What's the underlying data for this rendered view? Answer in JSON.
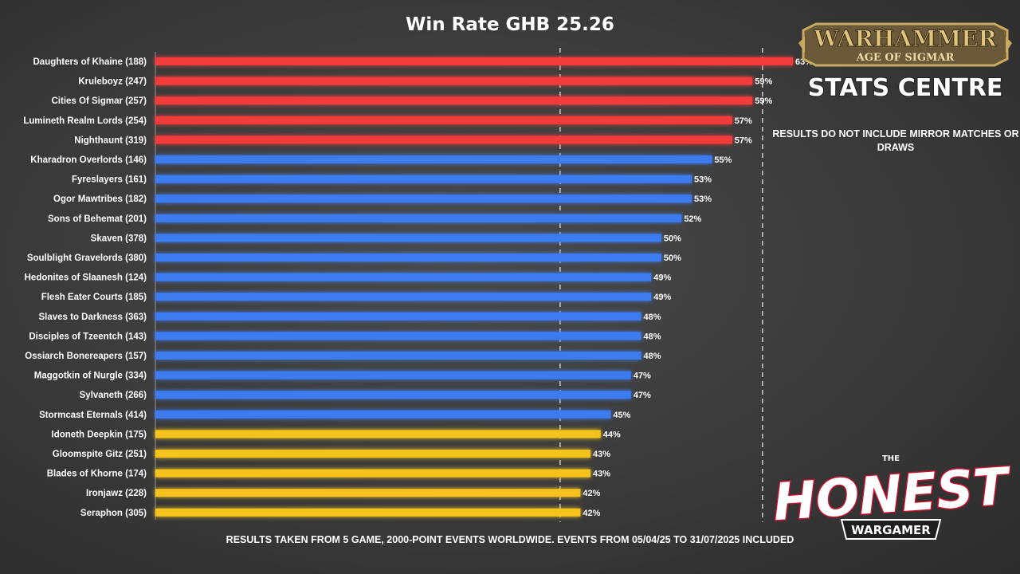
{
  "chart_data": {
    "type": "bar",
    "orientation": "horizontal",
    "title": "Win Rate GHB 25.26",
    "xlim": [
      0,
      63
    ],
    "reference_lines": [
      40,
      60
    ],
    "grid": false,
    "colors": {
      "red": "#f23a3a",
      "blue": "#3d7bf0",
      "yellow": "#f6c21a"
    },
    "categories": [
      "Daughters of Khaine (188)",
      "Kruleboyz (247)",
      "Cities Of Sigmar (257)",
      "Lumineth Realm Lords (254)",
      "Nighthaunt (319)",
      "Kharadron Overlords (146)",
      "Fyreslayers (161)",
      "Ogor Mawtribes (182)",
      "Sons of Behemat (201)",
      "Skaven (378)",
      "Soulblight Gravelords (380)",
      "Hedonites of Slaanesh (124)",
      "Flesh Eater Courts (185)",
      "Slaves to Darkness (363)",
      "Disciples of Tzeentch (143)",
      "Ossiarch Bonereapers (157)",
      "Maggotkin of Nurgle (334)",
      "Sylvaneth (266)",
      "Stormcast Eternals (414)",
      "Idoneth Deepkin (175)",
      "Gloomspite Gitz (251)",
      "Blades of Khorne (174)",
      "Ironjawz (228)",
      "Seraphon (305)"
    ],
    "values": [
      63,
      59,
      59,
      57,
      57,
      55,
      53,
      53,
      52,
      50,
      50,
      49,
      49,
      48,
      48,
      48,
      47,
      47,
      45,
      44,
      43,
      43,
      42,
      42
    ],
    "bar_colors": [
      "red",
      "red",
      "red",
      "red",
      "red",
      "blue",
      "blue",
      "blue",
      "blue",
      "blue",
      "blue",
      "blue",
      "blue",
      "blue",
      "blue",
      "blue",
      "blue",
      "blue",
      "blue",
      "yellow",
      "yellow",
      "yellow",
      "yellow",
      "yellow"
    ],
    "value_suffix": "%"
  },
  "note": "RESULTS DO NOT INCLUDE MIRROR MATCHES OR DRAWS",
  "footer": "RESULTS TAKEN FROM 5 GAME, 2000-POINT EVENTS WORLDWIDE. EVENTS FROM 05/04/25 TO 31/07/2025 INCLUDED",
  "logos": {
    "warhammer": {
      "line1": "WARHAMMER",
      "line2": "AGE OF SIGMAR",
      "line3": "STATS CENTRE"
    },
    "honest": {
      "small": "THE",
      "big": "HONEST",
      "banner": "WARGAMER"
    }
  }
}
